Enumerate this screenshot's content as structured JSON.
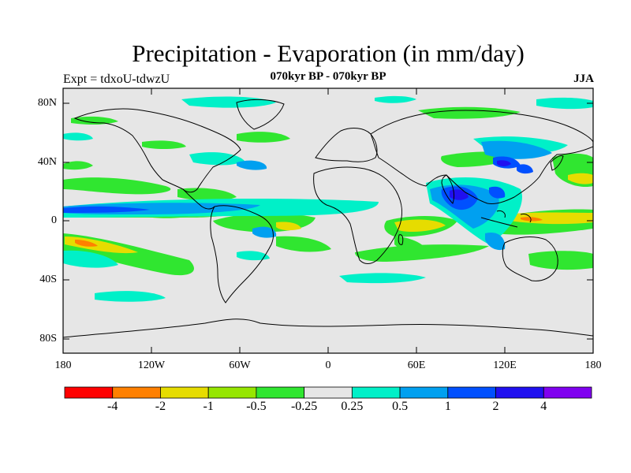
{
  "figure": {
    "title": "Precipitation - Evaporation (in mm/day)",
    "subtitle": "070kyr BP - 070kyr BP",
    "experiment": "Expt = tdxoU-tdwzU",
    "season": "JJA"
  },
  "axes": {
    "lon_ticks": [
      "180",
      "120W",
      "60W",
      "0",
      "60E",
      "120E",
      "180"
    ],
    "lat_ticks": [
      "80N",
      "40N",
      "0",
      "40S",
      "80S"
    ]
  },
  "colorbar": {
    "colors": [
      "#ff0000",
      "#ff8000",
      "#e6dc00",
      "#96e600",
      "#30e630",
      "#e6e6e6",
      "#00f0c8",
      "#00a0f0",
      "#0050ff",
      "#2010f0",
      "#8000f0"
    ],
    "labels": [
      "-4",
      "-2",
      "-1",
      "-0.5",
      "-0.25",
      "0.25",
      "0.5",
      "1",
      "2",
      "4"
    ]
  },
  "map_colors": {
    "background": "#e6e6e6",
    "coast": "#000000"
  }
}
